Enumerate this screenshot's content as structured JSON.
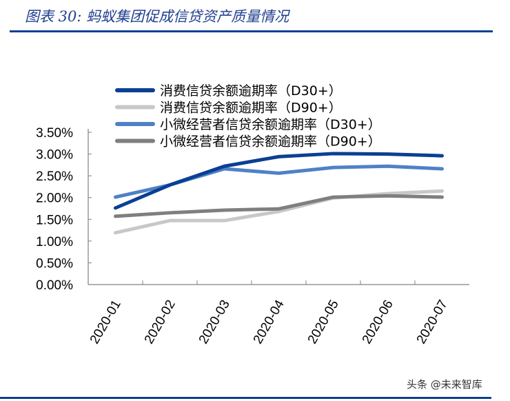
{
  "title": "图表 30:  蚂蚁集团促成信贷资产质量情况",
  "watermark": "头条 @未来智库",
  "colors": {
    "title": "#1f3f8f",
    "rule": "#0b3f94"
  },
  "chart_data": {
    "type": "line",
    "title": "",
    "xlabel": "",
    "ylabel": "",
    "categories": [
      "2020-01",
      "2020-02",
      "2020-03",
      "2020-04",
      "2020-05",
      "2020-06",
      "2020-07"
    ],
    "ylim": [
      0,
      3.5
    ],
    "yticks": [
      "0.00%",
      "0.50%",
      "1.00%",
      "1.50%",
      "2.00%",
      "2.50%",
      "3.00%",
      "3.50%"
    ],
    "grid": false,
    "legend_position": "top-left",
    "series": [
      {
        "name": "消费信贷余额逾期率（D30+）",
        "color": "#0b3f94",
        "values": [
          1.76,
          2.29,
          2.72,
          2.94,
          3.01,
          3.0,
          2.96
        ]
      },
      {
        "name": "消费信贷余额逾期率（D90+）",
        "color": "#c8c8c8",
        "values": [
          1.19,
          1.47,
          1.47,
          1.68,
          1.99,
          2.09,
          2.15
        ]
      },
      {
        "name": "小微经营者信贷余额逾期率（D30+）",
        "color": "#4f81c7",
        "values": [
          2.01,
          2.29,
          2.66,
          2.56,
          2.69,
          2.72,
          2.66
        ]
      },
      {
        "name": "小微经营者信贷余额逾期率（D90+）",
        "color": "#7f7f7f",
        "values": [
          1.57,
          1.65,
          1.71,
          1.74,
          2.01,
          2.04,
          2.01
        ]
      }
    ]
  }
}
